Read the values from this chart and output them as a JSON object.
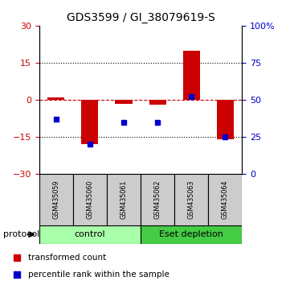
{
  "title": "GDS3599 / GI_38079619-S",
  "samples": [
    "GSM435059",
    "GSM435060",
    "GSM435061",
    "GSM435062",
    "GSM435063",
    "GSM435064"
  ],
  "red_bars": [
    1.0,
    -18.0,
    -1.5,
    -2.0,
    20.0,
    -16.0
  ],
  "blue_dots": [
    37.0,
    20.0,
    35.0,
    35.0,
    52.0,
    25.0
  ],
  "ylim_left": [
    -30,
    30
  ],
  "ylim_right": [
    0,
    100
  ],
  "yticks_left": [
    -30,
    -15,
    0,
    15,
    30
  ],
  "yticks_right": [
    0,
    25,
    50,
    75,
    100
  ],
  "ytick_labels_right": [
    "0",
    "25",
    "50",
    "75",
    "100%"
  ],
  "red_color": "#cc0000",
  "blue_color": "#0000cc",
  "dashed_line_color": "#cc0000",
  "dotted_line_y": [
    -15,
    15
  ],
  "zero_line_y": 0,
  "groups": [
    {
      "label": "control",
      "start": 0,
      "end": 3,
      "color": "#aaffaa"
    },
    {
      "label": "Eset depletion",
      "start": 3,
      "end": 6,
      "color": "#44cc44"
    }
  ],
  "protocol_label": "protocol",
  "legend_red": "transformed count",
  "legend_blue": "percentile rank within the sample",
  "bar_width": 0.5,
  "sample_box_color": "#cccccc",
  "title_fontsize": 10,
  "tick_fontsize": 8,
  "legend_fontsize": 7.5
}
